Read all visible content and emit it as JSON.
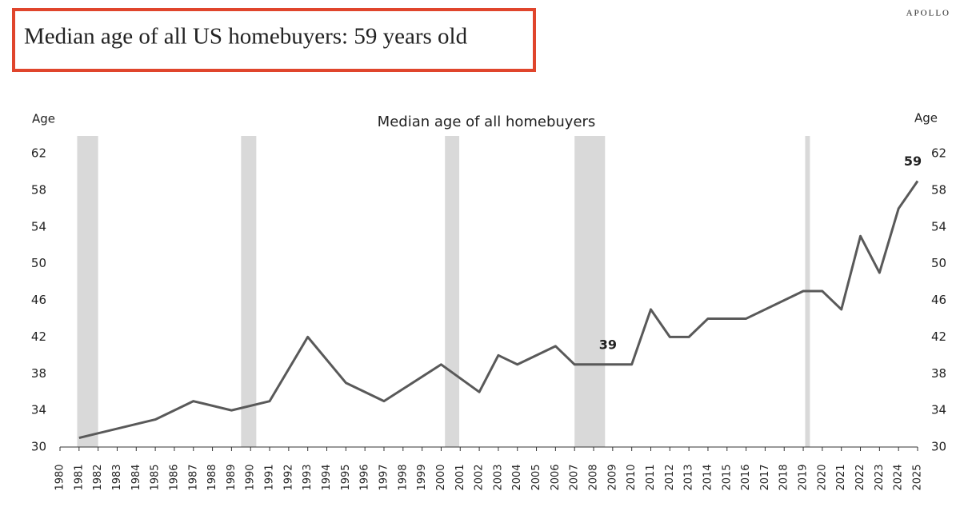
{
  "header": {
    "title": "Median age of all US homebuyers: 59 years old",
    "logo": "APOLLO"
  },
  "chart_data": {
    "type": "line",
    "title": "Median age of all homebuyers",
    "ylabel": "Age",
    "y2label": "Age",
    "x": [
      1981,
      1985,
      1987,
      1989,
      1991,
      1993,
      1995,
      1997,
      2000,
      2002,
      2003,
      2004,
      2006,
      2007,
      2008,
      2009,
      2010,
      2011,
      2012,
      2013,
      2014,
      2015,
      2016,
      2019,
      2020,
      2021,
      2022,
      2023,
      2024,
      2025
    ],
    "values": [
      31,
      33,
      35,
      34,
      35,
      42,
      37,
      35,
      39,
      36,
      40,
      39,
      41,
      39,
      39,
      39,
      39,
      45,
      42,
      42,
      44,
      44,
      44,
      47,
      47,
      45,
      53,
      49,
      56,
      59
    ],
    "color": "#595959",
    "annotations": [
      {
        "x": 2009,
        "value": 39
      },
      {
        "x": 2025,
        "value": 59
      }
    ],
    "shaded_ranges": [
      [
        1980.9,
        1982.0
      ],
      [
        1989.5,
        1990.3
      ],
      [
        2000.2,
        2000.95
      ],
      [
        2007.0,
        2008.6
      ],
      [
        2019.1,
        2019.35
      ]
    ],
    "shade_color": "#d9d9d9",
    "xlim": [
      1980,
      2025
    ],
    "xticks": [
      1980,
      1981,
      1982,
      1983,
      1984,
      1985,
      1986,
      1987,
      1988,
      1989,
      1990,
      1991,
      1992,
      1993,
      1994,
      1995,
      1996,
      1997,
      1998,
      1999,
      2000,
      2001,
      2002,
      2003,
      2004,
      2005,
      2006,
      2007,
      2008,
      2009,
      2010,
      2011,
      2012,
      2013,
      2014,
      2015,
      2016,
      2017,
      2018,
      2019,
      2020,
      2021,
      2022,
      2023,
      2024,
      2025
    ],
    "ylim": [
      30,
      62
    ],
    "yticks": [
      30,
      34,
      38,
      42,
      46,
      50,
      54,
      58,
      62
    ],
    "y2lim": [
      30,
      62
    ],
    "y2ticks": [
      30,
      34,
      38,
      42,
      46,
      50,
      54,
      58,
      62
    ]
  }
}
